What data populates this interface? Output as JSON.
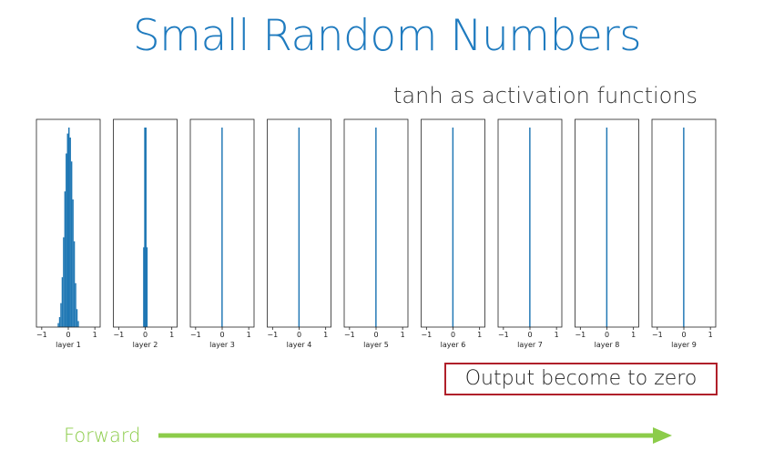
{
  "slide": {
    "title": "Small Random Numbers",
    "subtitle": "tanh as activation functions",
    "callout": "Output become to zero",
    "forward_label": "Forward"
  },
  "colors": {
    "title": "#1f7bbf",
    "bar": "#1f77b4",
    "callout_border": "#b0202a",
    "forward": "#8ccc4a"
  },
  "chart_data": [
    {
      "type": "bar",
      "xlabel": "layer 1",
      "xlim": [
        -1.2,
        1.2
      ],
      "xticks": [
        -1,
        0,
        1
      ],
      "bins": [
        -0.4,
        -0.35,
        -0.3,
        -0.25,
        -0.2,
        -0.15,
        -0.1,
        -0.05,
        0.0,
        0.05,
        0.1,
        0.15,
        0.2,
        0.25,
        0.3,
        0.35
      ],
      "values": [
        0.02,
        0.05,
        0.12,
        0.25,
        0.45,
        0.68,
        0.87,
        0.97,
        1.0,
        0.95,
        0.83,
        0.64,
        0.43,
        0.22,
        0.09,
        0.03
      ]
    },
    {
      "type": "bar",
      "xlabel": "layer 2",
      "xlim": [
        -1.2,
        1.2
      ],
      "xticks": [
        -1,
        0,
        1
      ],
      "bins": [
        -0.08,
        -0.04,
        0.0,
        0.04
      ],
      "values": [
        0.4,
        1.0,
        1.0,
        0.4
      ]
    },
    {
      "type": "bar",
      "xlabel": "layer 3",
      "xlim": [
        -1.2,
        1.2
      ],
      "xticks": [
        -1,
        0,
        1
      ],
      "bins": [
        -0.03
      ],
      "values": [
        1.0
      ]
    },
    {
      "type": "bar",
      "xlabel": "layer 4",
      "xlim": [
        -1.2,
        1.2
      ],
      "xticks": [
        -1,
        0,
        1
      ],
      "bins": [
        -0.03
      ],
      "values": [
        1.0
      ]
    },
    {
      "type": "bar",
      "xlabel": "layer 5",
      "xlim": [
        -1.2,
        1.2
      ],
      "xticks": [
        -1,
        0,
        1
      ],
      "bins": [
        -0.03
      ],
      "values": [
        1.0
      ]
    },
    {
      "type": "bar",
      "xlabel": "layer 6",
      "xlim": [
        -1.2,
        1.2
      ],
      "xticks": [
        -1,
        0,
        1
      ],
      "bins": [
        -0.03
      ],
      "values": [
        1.0
      ]
    },
    {
      "type": "bar",
      "xlabel": "layer 7",
      "xlim": [
        -1.2,
        1.2
      ],
      "xticks": [
        -1,
        0,
        1
      ],
      "bins": [
        -0.03
      ],
      "values": [
        1.0
      ]
    },
    {
      "type": "bar",
      "xlabel": "layer 8",
      "xlim": [
        -1.2,
        1.2
      ],
      "xticks": [
        -1,
        0,
        1
      ],
      "bins": [
        -0.03
      ],
      "values": [
        1.0
      ]
    },
    {
      "type": "bar",
      "xlabel": "layer 9",
      "xlim": [
        -1.2,
        1.2
      ],
      "xticks": [
        -1,
        0,
        1
      ],
      "bins": [
        -0.03
      ],
      "values": [
        1.0
      ]
    }
  ]
}
